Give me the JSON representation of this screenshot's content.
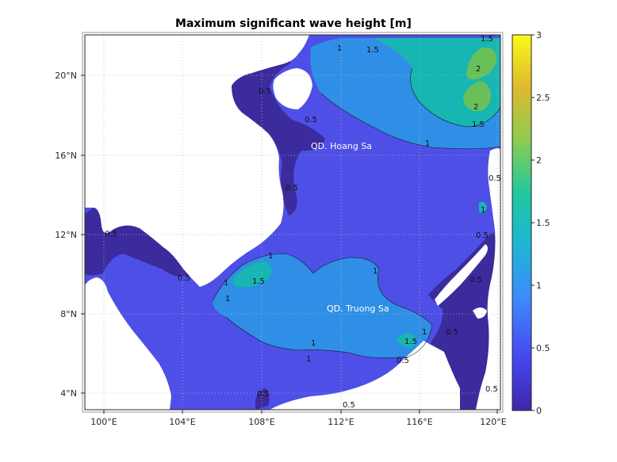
{
  "chart_data": {
    "type": "heatmap",
    "title": "Maximum significant wave height [m]",
    "x_ticks": [
      "100°E",
      "104°E",
      "108°E",
      "112°E",
      "116°E",
      "120°E"
    ],
    "y_ticks": [
      "4°N",
      "8°N",
      "12°N",
      "16°N",
      "20°N"
    ],
    "colorbar": {
      "min": 0,
      "max": 3,
      "ticks": [
        "0",
        "0.5",
        "1",
        "1.5",
        "2",
        "2.5",
        "3"
      ],
      "colors": [
        "#3e26a8",
        "#4646f0",
        "#3d8bfd",
        "#1cb8d2",
        "#20c89d",
        "#8dcc50",
        "#e0b831",
        "#f9fb15"
      ]
    },
    "region_colors": {
      "land": "#ffffff",
      "level_0": "#3b2b9c",
      "level_0_5": "#4d4fe7",
      "level_1": "#2f8fe6",
      "level_1_5": "#17b6b2",
      "level_2": "#69c05a"
    },
    "contour_labels": [
      "0.5",
      "1",
      "1.5",
      "2"
    ],
    "annotations": [
      "QD. Hoang Sa",
      "QD. Truong Sa"
    ]
  }
}
